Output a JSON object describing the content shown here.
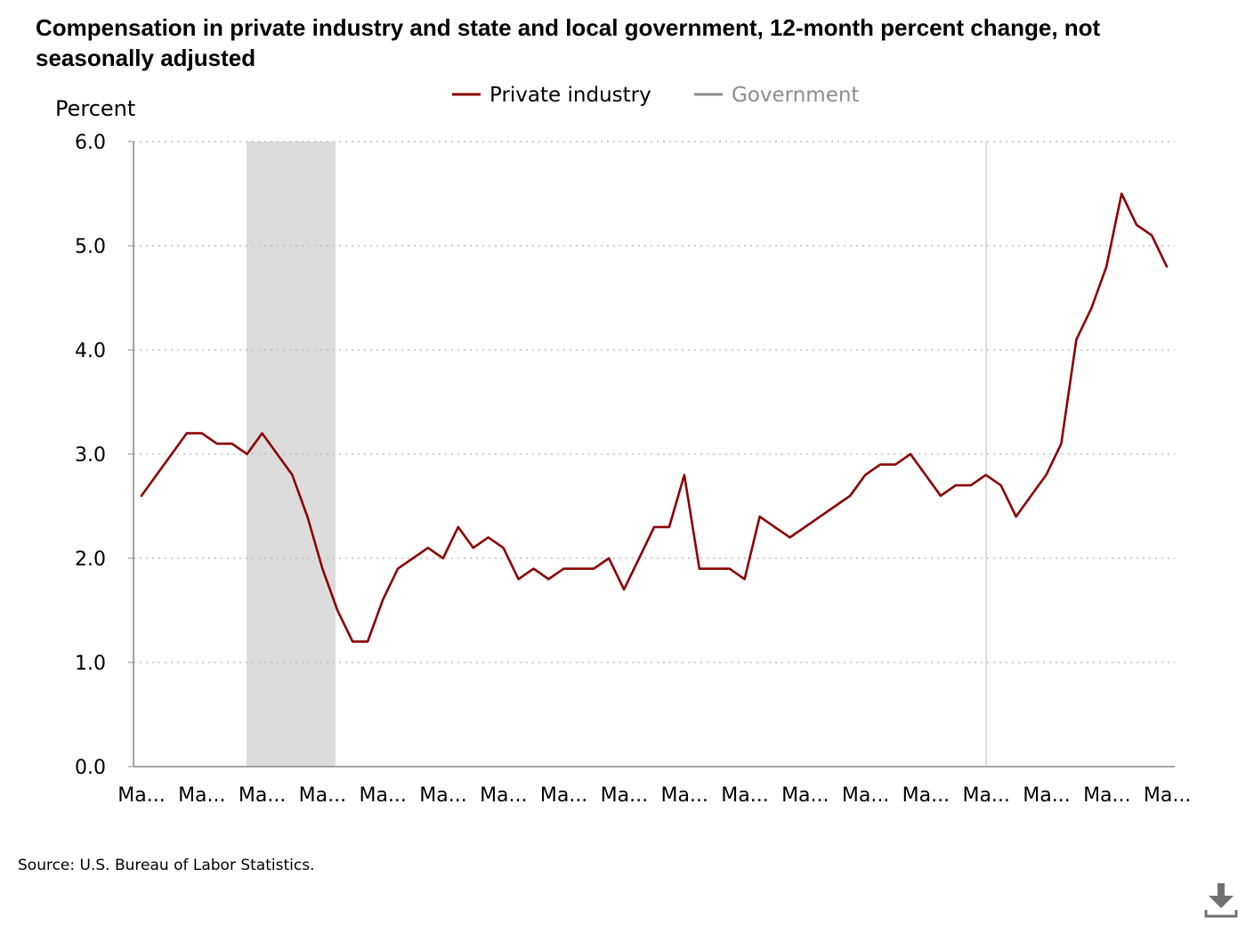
{
  "chart_data": {
    "type": "line",
    "title": "Compensation in private industry and state and local government, 12-month percent change, not seasonally adjusted",
    "ylabel": "Percent",
    "xlabel": "",
    "ylim": [
      0,
      6
    ],
    "yticks": [
      "0.0",
      "1.0",
      "2.0",
      "3.0",
      "4.0",
      "5.0",
      "6.0"
    ],
    "grid": true,
    "legend_position": "top-center",
    "x_tick_labels": [
      "Ma...",
      "Ma...",
      "Ma...",
      "Ma...",
      "Ma...",
      "Ma...",
      "Ma...",
      "Ma...",
      "Ma...",
      "Ma...",
      "Ma...",
      "Ma...",
      "Ma...",
      "Ma...",
      "Ma...",
      "Ma...",
      "Ma...",
      "Ma..."
    ],
    "recession_shading_color": "#dcdcdc",
    "series": [
      {
        "name": "Private industry",
        "color": "#8b0000",
        "values": [
          2.6,
          2.8,
          3.0,
          3.2,
          3.2,
          3.1,
          3.1,
          3.0,
          3.2,
          3.0,
          2.8,
          2.4,
          1.9,
          1.5,
          1.2,
          1.2,
          1.6,
          1.9,
          2.0,
          2.1,
          2.0,
          2.3,
          2.1,
          2.2,
          2.1,
          1.8,
          1.9,
          1.8,
          1.9,
          1.9,
          1.9,
          2.0,
          1.7,
          2.0,
          2.3,
          2.3,
          2.8,
          1.9,
          1.9,
          1.9,
          1.8,
          2.4,
          2.3,
          2.2,
          2.3,
          2.4,
          2.5,
          2.6,
          2.8,
          2.9,
          2.9,
          3.0,
          2.8,
          2.6,
          2.7,
          2.7,
          2.8,
          2.7,
          2.4,
          2.6,
          2.8,
          3.1,
          4.1,
          4.4,
          4.8,
          5.5,
          5.2,
          5.1,
          4.8
        ]
      },
      {
        "name": "Government",
        "color": "#8c8c8c",
        "values": []
      }
    ]
  },
  "source": "Source: U.S. Bureau of Labor Statistics.",
  "icons": {
    "download": "download-icon"
  }
}
